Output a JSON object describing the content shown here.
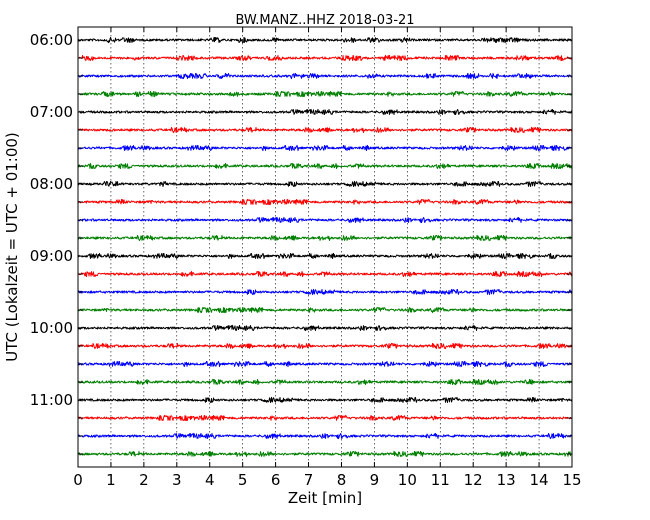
{
  "chart_data": {
    "type": "line",
    "title": "BW.MANZ..HHZ 2018-03-21",
    "xlabel": "Zeit  [min]",
    "ylabel": "UTC (Lokalzeit = UTC + 01:00)",
    "xlim": [
      0,
      15
    ],
    "x_ticks": [
      "0",
      "1",
      "2",
      "3",
      "4",
      "5",
      "6",
      "7",
      "8",
      "9",
      "10",
      "11",
      "12",
      "13",
      "14",
      "15"
    ],
    "y_tick_labels": [
      "06:00",
      "07:00",
      "08:00",
      "09:00",
      "10:00",
      "11:00"
    ],
    "trace_interval_min": 15,
    "trace_count": 24,
    "trace_colors": [
      "#000000",
      "#ff0000",
      "#0000ff",
      "#008000"
    ],
    "grid": "vertical dotted",
    "series": [
      {
        "start": "06:00",
        "color": "#000000"
      },
      {
        "start": "06:15",
        "color": "#ff0000"
      },
      {
        "start": "06:30",
        "color": "#0000ff"
      },
      {
        "start": "06:45",
        "color": "#008000"
      },
      {
        "start": "07:00",
        "color": "#000000"
      },
      {
        "start": "07:15",
        "color": "#ff0000"
      },
      {
        "start": "07:30",
        "color": "#0000ff"
      },
      {
        "start": "07:45",
        "color": "#008000"
      },
      {
        "start": "08:00",
        "color": "#000000"
      },
      {
        "start": "08:15",
        "color": "#ff0000"
      },
      {
        "start": "08:30",
        "color": "#0000ff"
      },
      {
        "start": "08:45",
        "color": "#008000"
      },
      {
        "start": "09:00",
        "color": "#000000"
      },
      {
        "start": "09:15",
        "color": "#ff0000"
      },
      {
        "start": "09:30",
        "color": "#0000ff"
      },
      {
        "start": "09:45",
        "color": "#008000"
      },
      {
        "start": "10:00",
        "color": "#000000"
      },
      {
        "start": "10:15",
        "color": "#ff0000"
      },
      {
        "start": "10:30",
        "color": "#0000ff"
      },
      {
        "start": "10:45",
        "color": "#008000"
      },
      {
        "start": "11:00",
        "color": "#000000"
      },
      {
        "start": "11:15",
        "color": "#ff0000"
      },
      {
        "start": "11:30",
        "color": "#0000ff"
      },
      {
        "start": "11:45",
        "color": "#008000"
      }
    ]
  }
}
